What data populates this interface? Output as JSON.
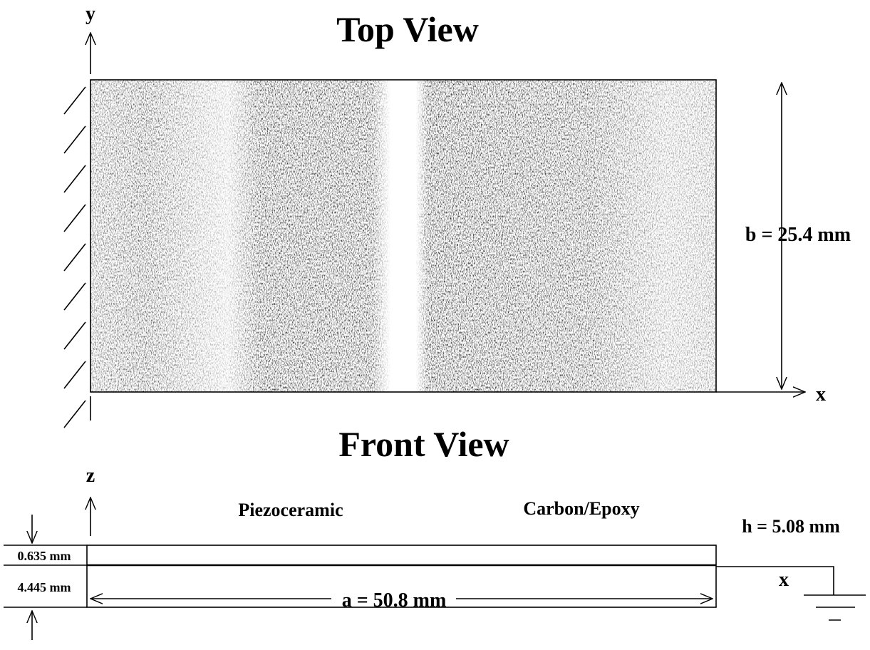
{
  "top_view": {
    "title": "Top View",
    "y_axis_label": "y",
    "x_axis_label": "x",
    "width_dimension": "b = 25.4 mm"
  },
  "front_view": {
    "title": "Front View",
    "z_axis_label": "z",
    "x_axis_label": "x",
    "layers": [
      {
        "label": "Piezoceramic",
        "thickness": "0.635 mm"
      },
      {
        "label": "Carbon/Epoxy",
        "thickness": "4.445 mm"
      }
    ],
    "height_dimension": "h = 5.08 mm",
    "length_dimension": "a = 50.8 mm"
  }
}
